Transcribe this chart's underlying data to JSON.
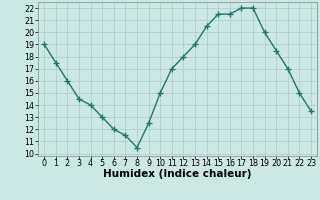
{
  "x": [
    0,
    1,
    2,
    3,
    4,
    5,
    6,
    7,
    8,
    9,
    10,
    11,
    12,
    13,
    14,
    15,
    16,
    17,
    18,
    19,
    20,
    21,
    22,
    23
  ],
  "y": [
    19,
    17.5,
    16,
    14.5,
    14,
    13,
    12,
    11.5,
    10.5,
    12.5,
    15,
    17,
    18,
    19,
    20.5,
    21.5,
    21.5,
    22,
    22,
    20,
    18.5,
    17,
    15,
    13.5
  ],
  "line_color": "#1a7a6e",
  "marker": "+",
  "marker_size": 4,
  "bg_color": "#cce8e4",
  "grid_color": "#aaccca",
  "xlabel": "Humidex (Indice chaleur)",
  "xlim": [
    -0.5,
    23.5
  ],
  "ylim": [
    9.8,
    22.5
  ],
  "yticks": [
    10,
    11,
    12,
    13,
    14,
    15,
    16,
    17,
    18,
    19,
    20,
    21,
    22
  ],
  "xticks": [
    0,
    1,
    2,
    3,
    4,
    5,
    6,
    7,
    8,
    9,
    10,
    11,
    12,
    13,
    14,
    15,
    16,
    17,
    18,
    19,
    20,
    21,
    22,
    23
  ],
  "tick_fontsize": 5.8,
  "label_fontsize": 7.5,
  "line_width": 1.0,
  "marker_edge_width": 1.0
}
